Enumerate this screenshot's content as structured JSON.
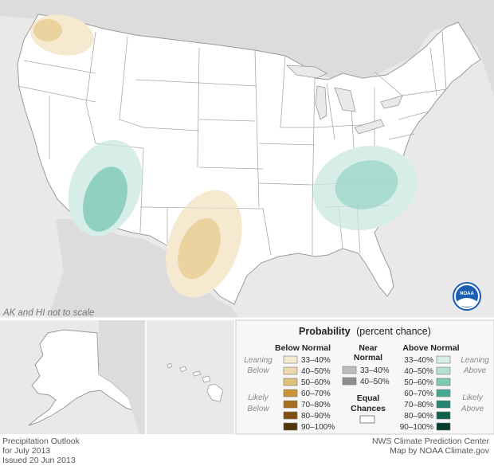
{
  "colors": {
    "background": "#e9e9e9",
    "land": "#ffffff",
    "border": "#9a9a9a",
    "below_light": "#f5ead0",
    "below_mid": "#ead39f",
    "above_light": "#d7eee8",
    "above_mid": "#8fd0c1",
    "noaa_blue": "#1a5fb4"
  },
  "map": {
    "scale_note": "AK and HI not to scale",
    "logo_text": "NOAA"
  },
  "legend": {
    "title": "Probability",
    "subtitle": "(percent chance)",
    "below": {
      "header": "Below Normal",
      "leaning_label": [
        "Leaning",
        "Below"
      ],
      "likely_label": [
        "Likely",
        "Below"
      ],
      "bins": [
        {
          "label": "33–40%",
          "color": "#f5ead0"
        },
        {
          "label": "40–50%",
          "color": "#ecd9ad"
        },
        {
          "label": "50–60%",
          "color": "#dfc078"
        },
        {
          "label": "60–70%",
          "color": "#c99538"
        },
        {
          "label": "70–80%",
          "color": "#a8701e"
        },
        {
          "label": "80–90%",
          "color": "#7e5013"
        },
        {
          "label": "90–100%",
          "color": "#53330a"
        }
      ]
    },
    "near": {
      "header": [
        "Near",
        "Normal"
      ],
      "bins": [
        {
          "label": "33–40%",
          "color": "#bdbdbd"
        },
        {
          "label": "40–50%",
          "color": "#8e8e8e"
        }
      ],
      "equal_label": [
        "Equal",
        "Chances"
      ]
    },
    "above": {
      "header": "Above Normal",
      "leaning_label": [
        "Leaning",
        "Above"
      ],
      "likely_label": [
        "Likely",
        "Above"
      ],
      "bins": [
        {
          "label": "33–40%",
          "color": "#d7eee8"
        },
        {
          "label": "40–50%",
          "color": "#b3e0d5"
        },
        {
          "label": "50–60%",
          "color": "#7fc8b6"
        },
        {
          "label": "60–70%",
          "color": "#45a891"
        },
        {
          "label": "70–80%",
          "color": "#248571"
        },
        {
          "label": "80–90%",
          "color": "#12604f"
        },
        {
          "label": "90–100%",
          "color": "#073b30"
        }
      ]
    }
  },
  "footer": {
    "left": [
      "Precipitation Outlook",
      "for July 2013",
      "Issued 20 Jun 2013"
    ],
    "right": [
      "NWS Climate Prediction Center",
      "Map by NOAA Climate.gov"
    ]
  }
}
